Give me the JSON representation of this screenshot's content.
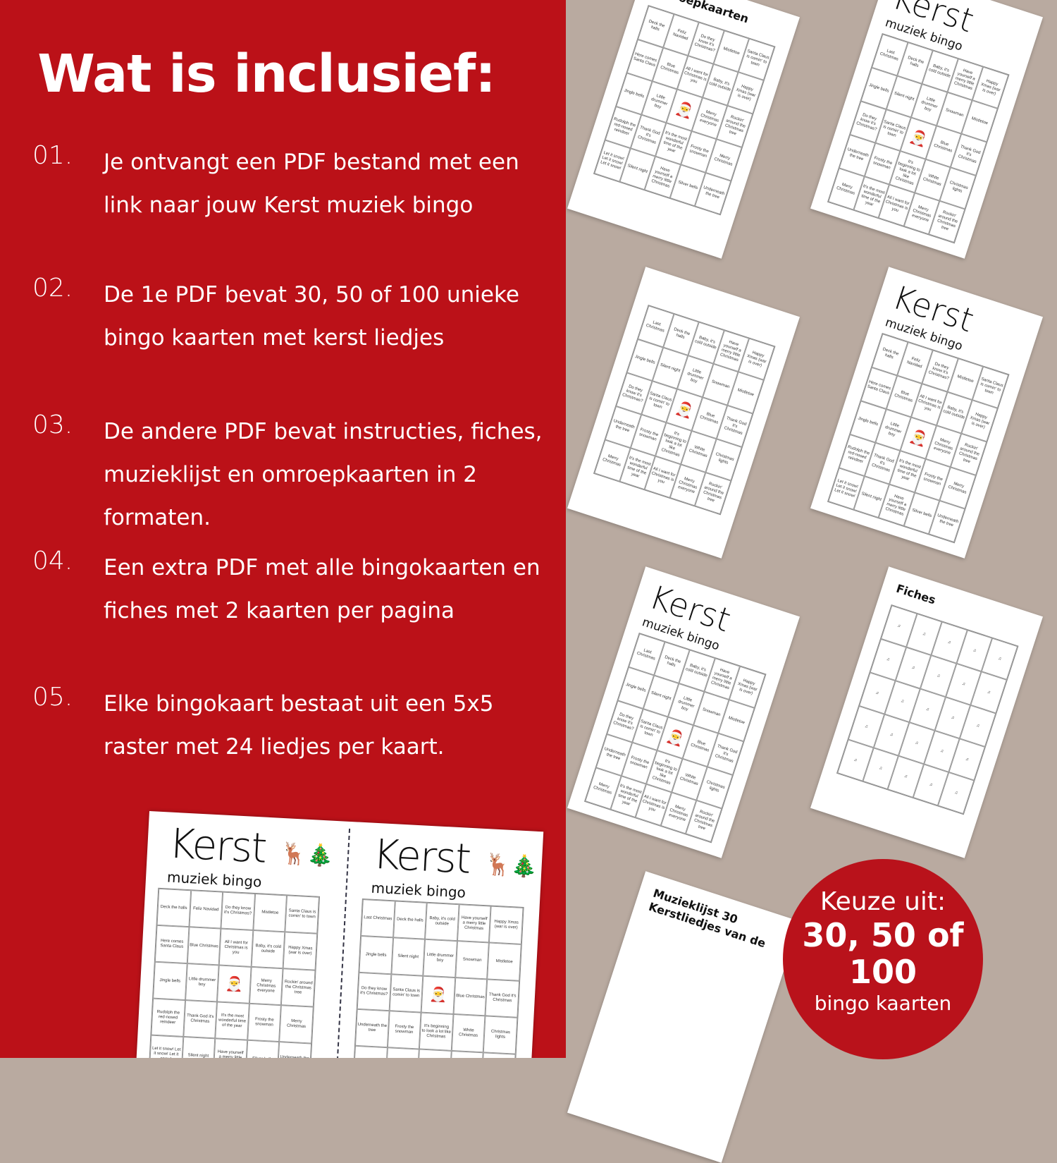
{
  "title": "Wat is inclusief:",
  "items": [
    {
      "num": "01.",
      "text": "Je ontvangt een PDF bestand met een link naar jouw Kerst muziek bingo"
    },
    {
      "num": "02.",
      "text": "De 1e PDF bevat 30, 50 of 100 unieke bingo kaarten met kerst liedjes"
    },
    {
      "num": "03.",
      "text": "De andere PDF bevat instructies, fiches, muzieklijst en omroepkaarten in 2 formaten."
    },
    {
      "num": "04.",
      "text": "Een extra PDF met alle bingokaarten en fiches met 2 kaarten per pagina"
    },
    {
      "num": "05.",
      "text": "Elke bingokaart bestaat uit een 5x5 raster met 24 liedjes per kaart."
    }
  ],
  "card_title": "Kerst",
  "card_subtitle": "muziek bingo",
  "cards": [
    {
      "cells": [
        "Deck the halls",
        "Feliz Navidad",
        "Do they know it's Christmas?",
        "Mistletoe",
        "Santa Claus is comin' to town",
        "Here comes Santa Claus",
        "Blue Christmas",
        "All I want for Christmas is you",
        "Baby, it's cold outside",
        "Happy Xmas (war is over)",
        "Jingle bells",
        "Little drummer boy",
        "",
        "Merry Christmas everyone",
        "Rockin' around the Christmas tree",
        "Rudolph the red-nosed reindeer",
        "Thank God it's Christmas",
        "It's the most wonderful time of the year",
        "Frosty the snowman",
        "Merry Christmas",
        "Let it snow! Let it snow! Let it snow!",
        "Silent night",
        "Have yourself a merry little Christmas",
        "Silver bells",
        "Underneath the tree"
      ]
    },
    {
      "cells": [
        "Last Christmas",
        "Deck the halls",
        "Baby, it's cold outside",
        "Have yourself a merry little Christmas",
        "Happy Xmas (war is over)",
        "Jingle bells",
        "Silent night",
        "Little drummer boy",
        "Snowman",
        "Mistletoe",
        "Do they know it's Christmas?",
        "Santa Claus is comin' to town",
        "",
        "Blue Christmas",
        "Thank God it's Christmas",
        "Underneath the tree",
        "Frosty the snowman",
        "It's beginning to look a lot like Christmas",
        "White Christmas",
        "Christmas lights",
        "Merry Christmas",
        "It's the most wonderful time of the year",
        "All I want for Christmas is you",
        "Merry Christmas everyone",
        "Rockin' around the Christmas tree"
      ]
    }
  ],
  "pages": {
    "omroep": "Omroepkaarten",
    "fiches": "Fiches",
    "muzieklijst": "Muzieklijst 30 Kerstliedjes van de"
  },
  "badge": {
    "line1": "Keuze uit:",
    "line2": "30, 50 of 100",
    "line3": "bingo kaarten"
  },
  "colors": {
    "red": "#bb1118",
    "background": "#b9aaa0"
  }
}
